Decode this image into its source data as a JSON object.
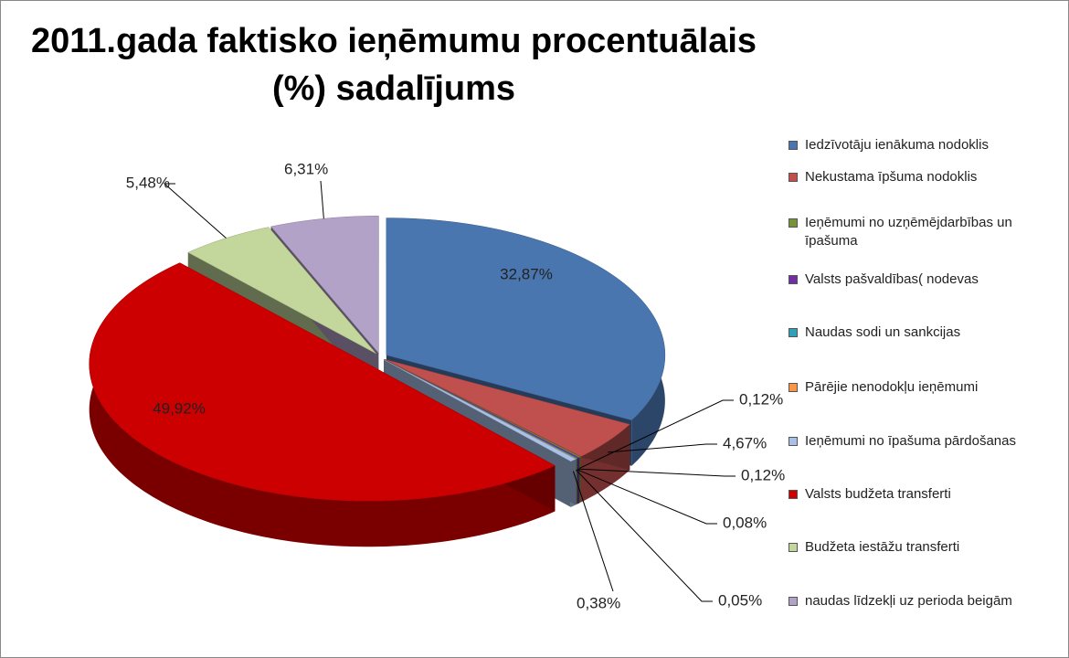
{
  "chart_data": {
    "type": "pie",
    "title": "2011.gada faktisko ieņēmumu procentuālais (%) sadalījums",
    "categories": [
      "Iedzīvotāju ienākuma nodoklis",
      "Nekustama īpšuma nodoklis",
      "Ieņēmumi no uzņēmējdarbības un īpašuma",
      "Valsts pašvaldības( nodevas",
      "Naudas sodi un sankcijas",
      "Pārējie nenodokļu ieņēmumi",
      "Ieņēmumi no īpašuma pārdošanas",
      "Valsts budžeta transferti",
      "Budžeta iestāžu transferti",
      "naudas līdzekļi uz perioda beigām"
    ],
    "values": [
      32.87,
      4.67,
      0.12,
      0.12,
      0.08,
      0.05,
      0.38,
      49.92,
      5.48,
      6.31
    ],
    "value_labels": [
      "32,87%",
      "4,67%",
      "0,12%",
      "0,12%",
      "0,08%",
      "0,05%",
      "0,38%",
      "49,92%",
      "5,48%",
      "6,31%"
    ],
    "colors": [
      "#4a76b0",
      "#c0504d",
      "#77933c",
      "#7030a0",
      "#31a0b8",
      "#f79646",
      "#a9c1e6",
      "#cc0000",
      "#c3d69b",
      "#b3a2c7"
    ],
    "legend": "right"
  }
}
